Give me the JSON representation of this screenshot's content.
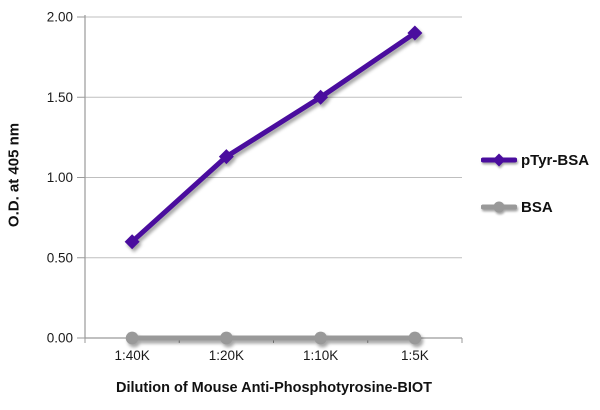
{
  "chart_data": {
    "type": "line",
    "title": "",
    "categories": [
      "1:40K",
      "1:20K",
      "1:10K",
      "1:5K"
    ],
    "series": [
      {
        "name": "pTyr-BSA",
        "values": [
          0.6,
          1.13,
          1.5,
          1.9
        ],
        "color": "#4a0d9e",
        "marker": "diamond"
      },
      {
        "name": "BSA",
        "values": [
          0.0,
          0.0,
          0.0,
          0.0
        ],
        "color": "#999999",
        "marker": "circle"
      }
    ],
    "xlabel": "Dilution of Mouse Anti-Phosphotyrosine-BIOT",
    "ylabel": "O.D. at 405 nm",
    "ylim": [
      0,
      2
    ],
    "ytick_step": 0.5,
    "ytick_labels": [
      "0.00",
      "0.50",
      "1.00",
      "1.50",
      "2.00"
    ],
    "grid": true,
    "legend_position": "right"
  },
  "colors": {
    "gridline": "#bfbfbf",
    "axis": "#9a9a9a",
    "text": "#1a1a1a",
    "background": "#ffffff"
  }
}
